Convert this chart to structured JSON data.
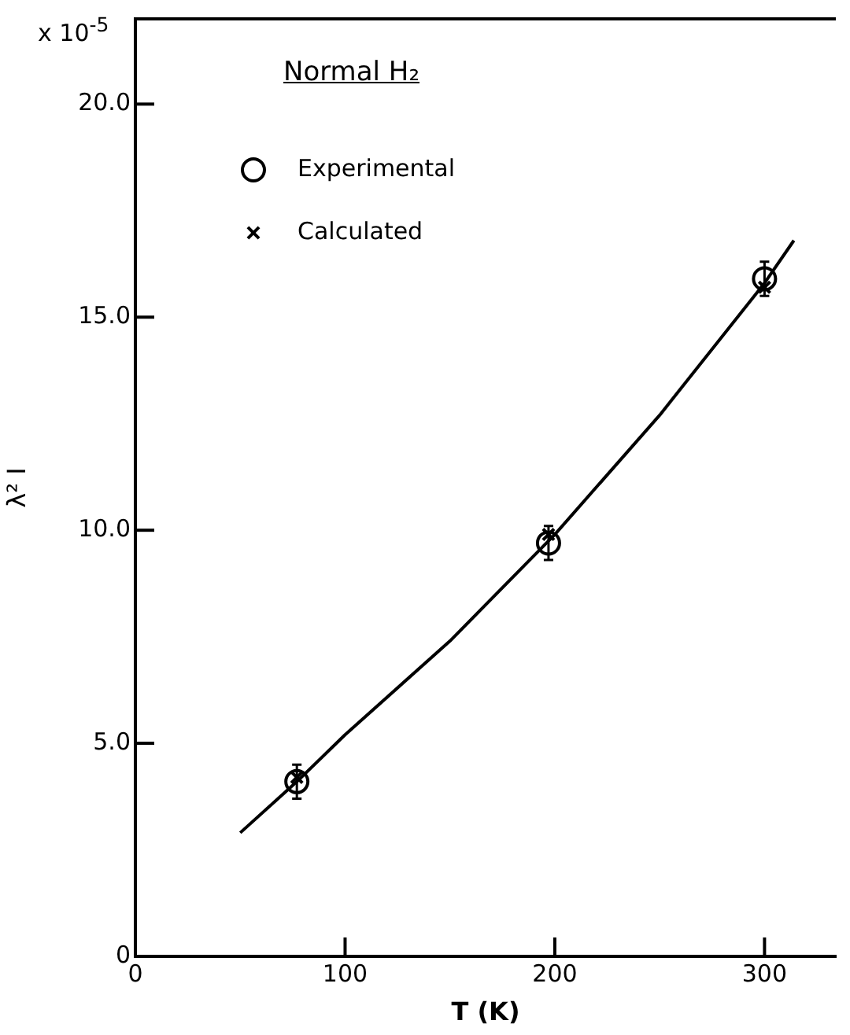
{
  "chart_data": {
    "type": "scatter",
    "title": "Normal H₂",
    "xlabel": "T (K)",
    "ylabel": "λ² I",
    "annotations": [
      "x 10$^{-5}$"
    ],
    "xlim": [
      0,
      334
    ],
    "ylim": [
      0,
      22
    ],
    "xticks": [
      0,
      100,
      200,
      300
    ],
    "yticks": [
      0,
      {
        "value": 5,
        "label": "5.0"
      },
      {
        "value": 10,
        "label": "10.0"
      },
      {
        "value": 15,
        "label": "15.0"
      },
      {
        "value": 20,
        "label": "20.0"
      }
    ],
    "grid": false,
    "legend": "top left",
    "series": [
      {
        "type": "line",
        "color": "#000000",
        "marker": "none",
        "x": [
          50,
          77,
          100,
          150,
          200,
          250,
          300,
          314
        ],
        "values": [
          2.9,
          4.1,
          5.2,
          7.4,
          9.9,
          12.7,
          15.8,
          16.8
        ]
      },
      {
        "name": "Experimental",
        "type": "scatter",
        "color": "#000000",
        "marker": "circle",
        "x": [
          77,
          197,
          300
        ],
        "values": [
          4.1,
          9.7,
          15.9
        ],
        "errors": [
          0.4,
          0.4,
          0.4
        ]
      },
      {
        "name": "Calculated",
        "type": "scatter",
        "color": "#000000",
        "marker": "cross",
        "x": [
          77,
          197,
          300
        ],
        "values": [
          4.2,
          9.9,
          15.7
        ]
      }
    ]
  }
}
